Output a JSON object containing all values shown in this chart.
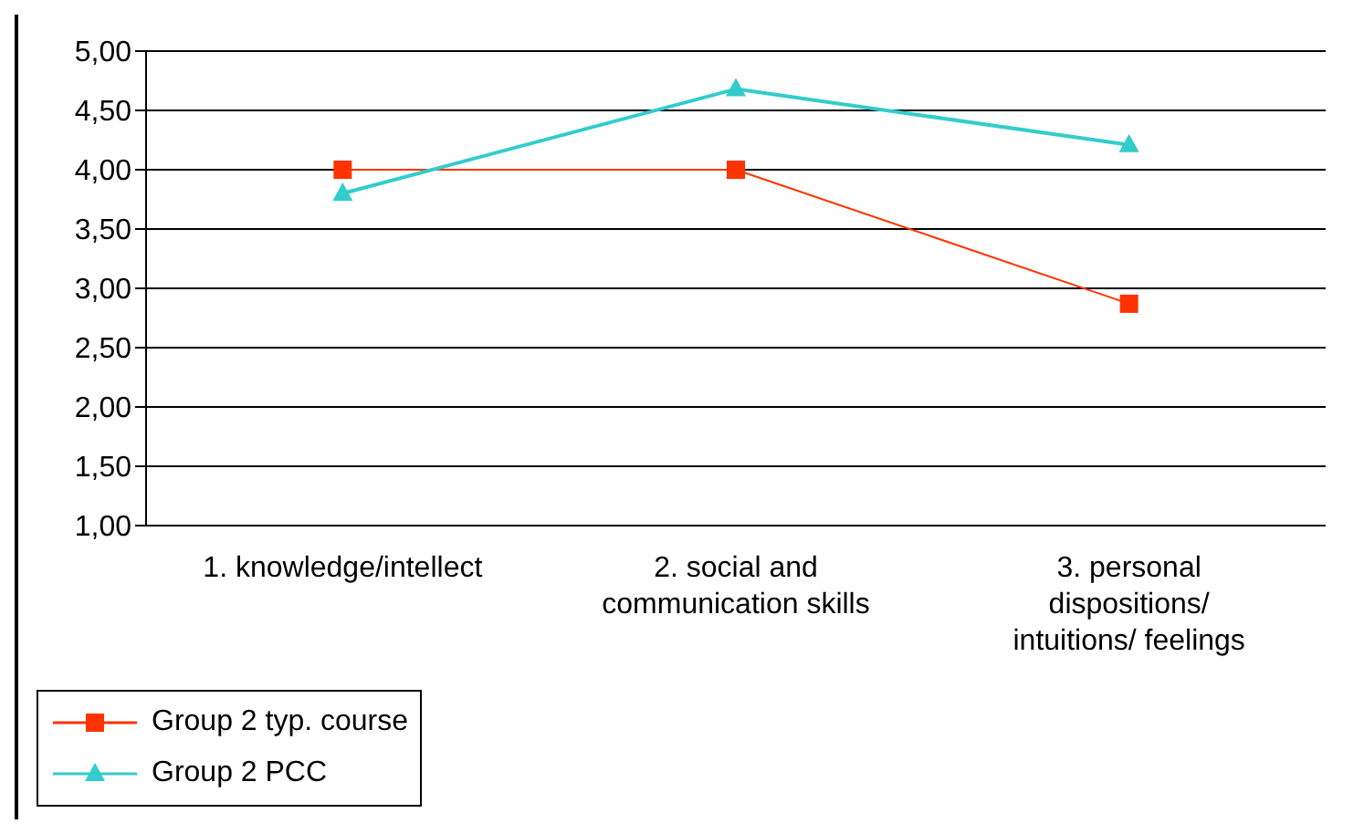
{
  "chart_data": {
    "type": "line",
    "categories": [
      "1. knowledge/intellect",
      "2. social and communication skills",
      "3. personal dispositions/ intuitions/ feelings"
    ],
    "series": [
      {
        "name": "Group 2 typ. course",
        "color": "#ff3300",
        "marker": "square",
        "values": [
          4.0,
          4.0,
          2.87
        ]
      },
      {
        "name": "Group 2 PCC",
        "color": "#33cccc",
        "marker": "triangle",
        "values": [
          3.8,
          4.68,
          4.21
        ]
      }
    ],
    "ylim": [
      1,
      5
    ],
    "yticks": [
      {
        "value": 1,
        "label": "1,00"
      },
      {
        "value": 1.5,
        "label": "1,50"
      },
      {
        "value": 2,
        "label": "2,00"
      },
      {
        "value": 2.5,
        "label": "2,50"
      },
      {
        "value": 3,
        "label": "3,00"
      },
      {
        "value": 3.5,
        "label": "3,50"
      },
      {
        "value": 4,
        "label": "4,00"
      },
      {
        "value": 4.5,
        "label": "4,50"
      },
      {
        "value": 5,
        "label": "5,00"
      }
    ],
    "grid": "y",
    "legend": "bottom left"
  }
}
